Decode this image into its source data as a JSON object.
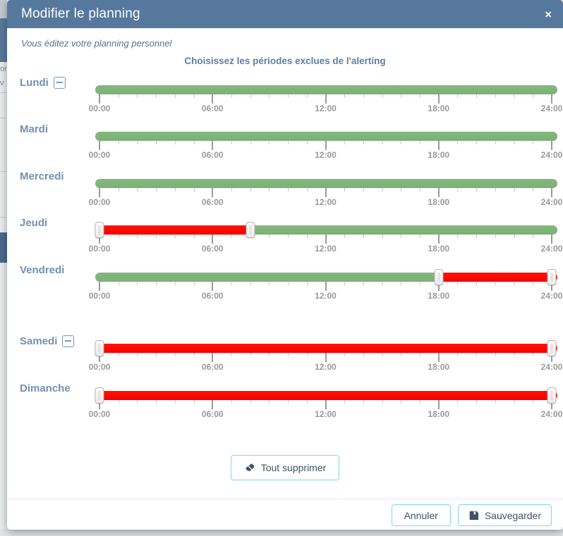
{
  "modal": {
    "title": "Modifier le planning",
    "close_icon": "×",
    "subtitle": "Vous éditez votre planning personnel",
    "section_title": "Choisissez les périodes exclues de l'alerting"
  },
  "background": {
    "fragments": [
      "on",
      "v"
    ]
  },
  "slider_config": {
    "hours_start": 0,
    "hours_end": 24,
    "minor_tick_every_hours": 1,
    "major_tick_every_hours": 6,
    "tick_labels": [
      "00:00",
      "06:00",
      "12:00",
      "18:00",
      "24:00"
    ]
  },
  "days": [
    {
      "label": "Lundi",
      "removable": true,
      "handles": [],
      "segments": [
        {
          "start": 0,
          "end": 24,
          "status": "included"
        }
      ]
    },
    {
      "label": "Mardi",
      "removable": false,
      "handles": [],
      "segments": [
        {
          "start": 0,
          "end": 24,
          "status": "included"
        }
      ]
    },
    {
      "label": "Mercredi",
      "removable": false,
      "handles": [],
      "segments": [
        {
          "start": 0,
          "end": 24,
          "status": "included"
        }
      ]
    },
    {
      "label": "Jeudi",
      "removable": false,
      "handles": [
        0,
        8
      ],
      "segments": [
        {
          "start": 0,
          "end": 8,
          "status": "excluded"
        },
        {
          "start": 8,
          "end": 24,
          "status": "included"
        }
      ]
    },
    {
      "label": "Vendredi",
      "removable": false,
      "handles": [
        18,
        24
      ],
      "segments": [
        {
          "start": 0,
          "end": 18,
          "status": "included"
        },
        {
          "start": 18,
          "end": 24,
          "status": "excluded"
        }
      ]
    },
    {
      "label": "Samedi",
      "removable": true,
      "handles": [
        0,
        24
      ],
      "segments": [
        {
          "start": 0,
          "end": 24,
          "status": "excluded"
        }
      ]
    },
    {
      "label": "Dimanche",
      "removable": false,
      "handles": [
        0,
        24
      ],
      "segments": [
        {
          "start": 0,
          "end": 24,
          "status": "excluded"
        }
      ]
    }
  ],
  "actions": {
    "clear_all_label": "Tout supprimer",
    "cancel_label": "Annuler",
    "save_label": "Sauvegarder"
  },
  "colors": {
    "header_bg": "#56789d",
    "included_green": "#7bb076",
    "excluded_red": "#f40000",
    "day_label_blue": "#7391b1",
    "button_border_teal": "#7edbd2",
    "button_text": "#3d5466",
    "tick_label_gray": "#999999"
  }
}
